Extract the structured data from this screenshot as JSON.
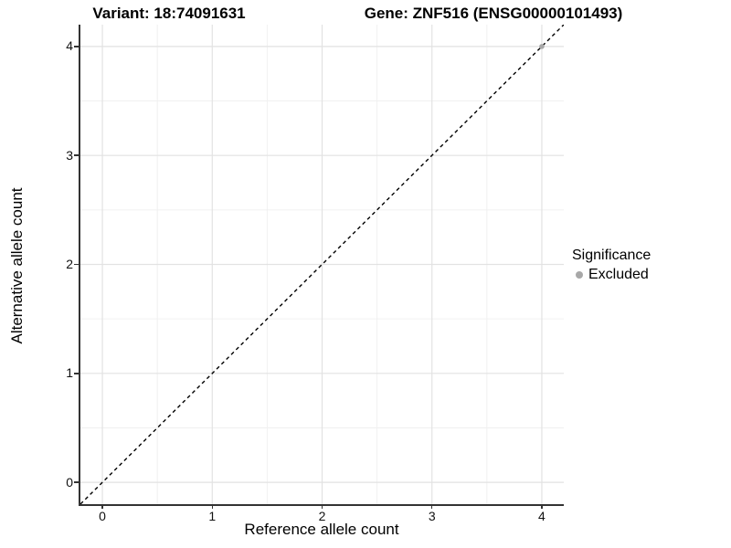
{
  "colors": {
    "background": "#ffffff",
    "grid_major": "#e2e2e2",
    "grid_minor": "#f0f0f0",
    "axis_line": "#333333",
    "tick_text": "#111111",
    "excluded_gray": "#a8a8a8",
    "reference_line": "#000000"
  },
  "chart_data": {
    "type": "scatter",
    "titles": {
      "left": "Variant: 18:74091631",
      "right": "Gene: ZNF516 (ENSG00000101493)"
    },
    "xlabel": "Reference allele count",
    "ylabel": "Alternative allele count",
    "xlim": [
      -0.2,
      4.2
    ],
    "ylim": [
      -0.2,
      4.2
    ],
    "xticks": [
      0,
      1,
      2,
      3,
      4
    ],
    "yticks": [
      0,
      1,
      2,
      3,
      4
    ],
    "minor_xticks": [
      0.5,
      1.5,
      2.5,
      3.5
    ],
    "minor_yticks": [
      0.5,
      1.5,
      2.5,
      3.5
    ],
    "grid": "major+minor",
    "series": [
      {
        "name": "Excluded",
        "color": "#a8a8a8",
        "marker": "circle",
        "points": [
          [
            4,
            4
          ]
        ]
      }
    ],
    "reference_line": {
      "kind": "identity",
      "from": [
        -0.2,
        -0.2
      ],
      "to": [
        4.2,
        4.2
      ],
      "style": "dashed",
      "color": "#000000"
    },
    "legend": {
      "title": "Significance",
      "position": "right",
      "items": [
        {
          "label": "Excluded",
          "color": "#a8a8a8"
        }
      ]
    }
  }
}
